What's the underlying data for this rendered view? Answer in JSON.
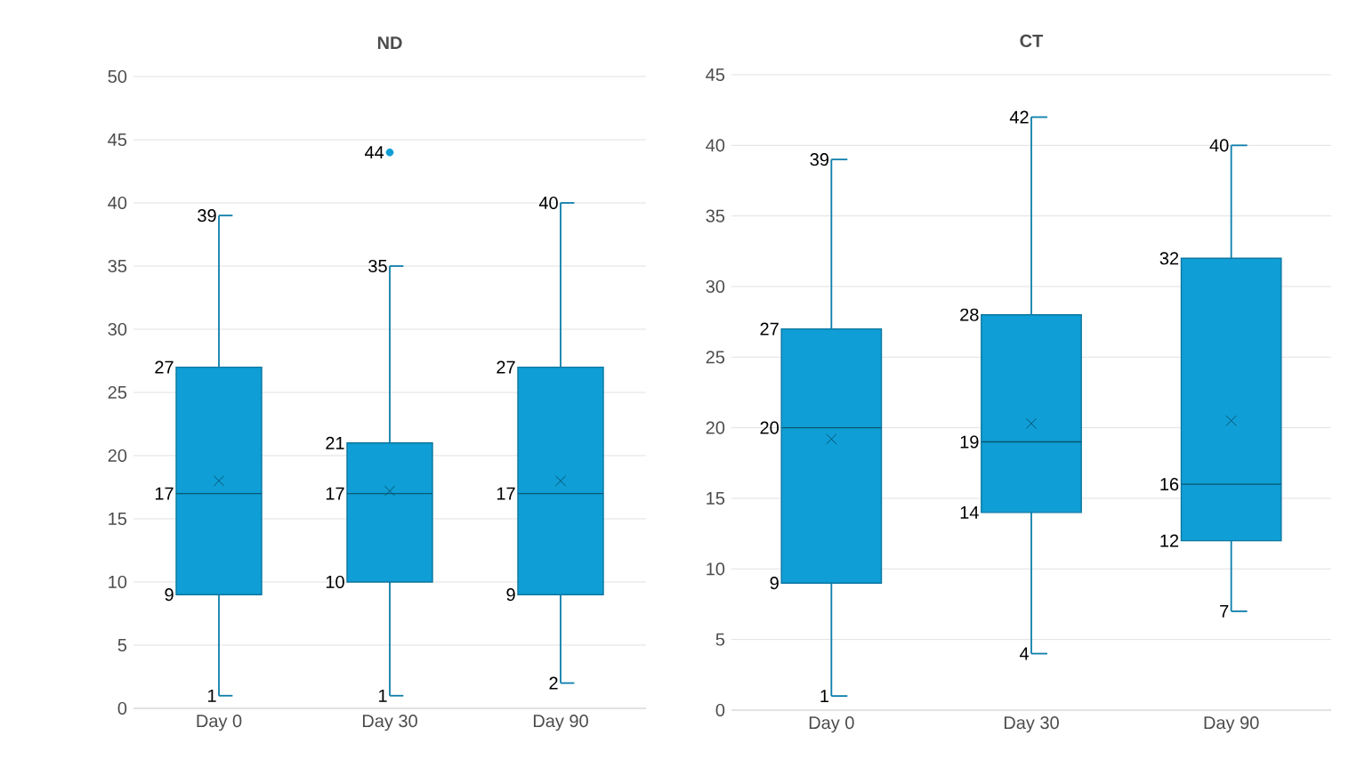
{
  "chart_data": [
    {
      "type": "box",
      "title": "ND",
      "categories": [
        "Day 0",
        "Day 30",
        "Day 90"
      ],
      "ylim": [
        0,
        50
      ],
      "yticks": [
        0,
        5,
        10,
        15,
        20,
        25,
        30,
        35,
        40,
        45,
        50
      ],
      "grid": "y",
      "series": [
        {
          "color": "#0f9ed5",
          "boxes": [
            {
              "low": 1,
              "q1": 9,
              "median": 17,
              "q3": 27,
              "high": 39,
              "mean": 18
            },
            {
              "low": 1,
              "q1": 10,
              "median": 17,
              "q3": 21,
              "high": 35,
              "mean": 17.2,
              "outliers": [
                44
              ]
            },
            {
              "low": 2,
              "q1": 9,
              "median": 17,
              "q3": 27,
              "high": 40,
              "mean": 18
            }
          ],
          "value_labels": [
            [
              "1",
              "9",
              "17",
              "27",
              "39"
            ],
            [
              "1",
              "10",
              "17",
              "21",
              "35",
              "44"
            ],
            [
              "2",
              "9",
              "17",
              "27",
              "40"
            ]
          ]
        }
      ]
    },
    {
      "type": "box",
      "title": "CT",
      "categories": [
        "Day 0",
        "Day 30",
        "Day 90"
      ],
      "ylim": [
        0,
        45
      ],
      "yticks": [
        0,
        5,
        10,
        15,
        20,
        25,
        30,
        35,
        40,
        45
      ],
      "grid": "y",
      "series": [
        {
          "color": "#0f9ed5",
          "boxes": [
            {
              "low": 1,
              "q1": 9,
              "median": 20,
              "q3": 27,
              "high": 39,
              "mean": 19.2
            },
            {
              "low": 4,
              "q1": 14,
              "median": 19,
              "q3": 28,
              "high": 42,
              "mean": 20.3
            },
            {
              "low": 7,
              "q1": 12,
              "median": 16,
              "q3": 32,
              "high": 40,
              "mean": 20.5
            }
          ],
          "value_labels": [
            [
              "1",
              "9",
              "20",
              "27",
              "39"
            ],
            [
              "4",
              "14",
              "19",
              "28",
              "42"
            ],
            [
              "7",
              "12",
              "16",
              "32",
              "40"
            ]
          ]
        }
      ]
    }
  ]
}
